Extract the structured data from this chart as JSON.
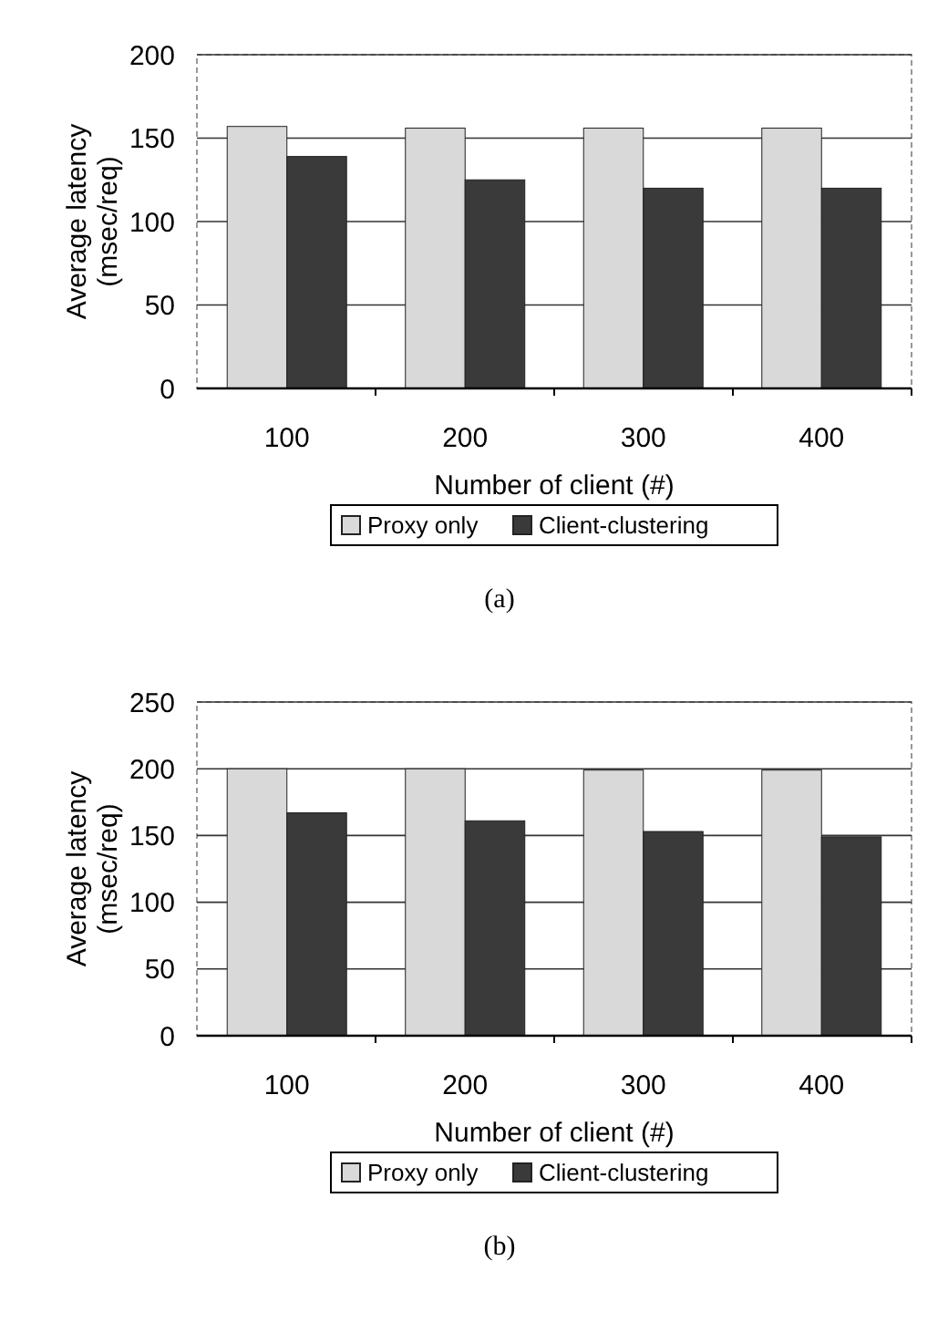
{
  "chart_data": [
    {
      "type": "bar",
      "title": "(a)",
      "xlabel": "Number of client (#)",
      "ylabel": "Average latency (msec/req)",
      "categories": [
        "100",
        "200",
        "300",
        "400"
      ],
      "series": [
        {
          "name": "Proxy only",
          "color": "#d9d9d9",
          "values": [
            157,
            156,
            156,
            156
          ]
        },
        {
          "name": "Client-clustering",
          "color": "#3a3a3a",
          "values": [
            139,
            125,
            120,
            120
          ]
        }
      ],
      "ylim": [
        0,
        200
      ],
      "yticks": [
        0,
        50,
        100,
        150,
        200
      ],
      "grid": "y",
      "legend": "bottom"
    },
    {
      "type": "bar",
      "title": "(b)",
      "xlabel": "Number of client (#)",
      "ylabel": "Average latency (msec/req)",
      "categories": [
        "100",
        "200",
        "300",
        "400"
      ],
      "series": [
        {
          "name": "Proxy only",
          "color": "#d9d9d9",
          "values": [
            200,
            200,
            199,
            199
          ]
        },
        {
          "name": "Client-clustering",
          "color": "#3a3a3a",
          "values": [
            167,
            161,
            153,
            149
          ]
        }
      ],
      "ylim": [
        0,
        250
      ],
      "yticks": [
        0,
        50,
        100,
        150,
        200,
        250
      ],
      "grid": "y",
      "legend": "bottom"
    }
  ]
}
